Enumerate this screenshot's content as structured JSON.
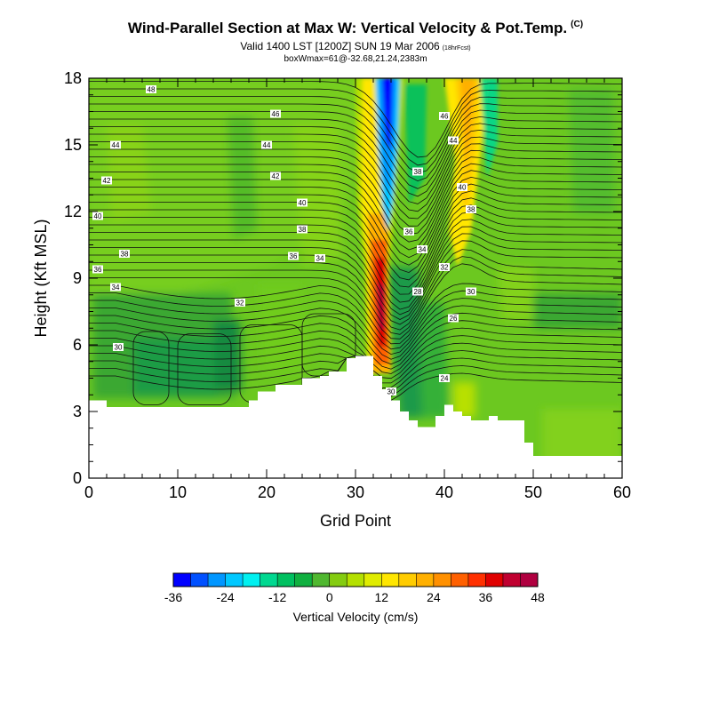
{
  "chart_data": {
    "type": "heatmap",
    "title": "Wind-Parallel Section at Max W: Vertical Velocity & Pot.Temp.",
    "copyright_mark": "(C)",
    "subtitle": "Valid 1400 LST [1200Z] SUN 19 Mar 2006",
    "subtitle_tag": "(18hrFcst)",
    "subtitle2": "boxWmax=61@-32.68,21.24,2383m",
    "xlabel": "Grid Point",
    "ylabel": "Height (Kft MSL)",
    "xlim": [
      0,
      60
    ],
    "ylim": [
      0,
      18
    ],
    "xticks": [
      "0",
      "10",
      "20",
      "30",
      "40",
      "50",
      "60"
    ],
    "yticks": [
      "0",
      "3",
      "6",
      "9",
      "12",
      "15",
      "18"
    ],
    "colorbar": {
      "label": "Vertical Velocity (cm/s)",
      "min": -36,
      "max": 48,
      "step": 4,
      "tick_labels": [
        "-36",
        "-24",
        "-12",
        "0",
        "12",
        "24",
        "36",
        "48"
      ],
      "colors": [
        "#0000ff",
        "#0050ff",
        "#0096ff",
        "#00c8ff",
        "#00f0f0",
        "#00d890",
        "#00c060",
        "#10b040",
        "#50b830",
        "#84cc10",
        "#b4e000",
        "#e0ec00",
        "#ffe600",
        "#ffcc00",
        "#ffb000",
        "#ff9000",
        "#ff6000",
        "#ff3000",
        "#e00000",
        "#c00030",
        "#b00040"
      ]
    },
    "terrain_kft": [
      3.5,
      3.5,
      3.2,
      3.2,
      3.2,
      3.2,
      3.2,
      3.2,
      3.2,
      3.2,
      3.2,
      3.2,
      3.2,
      3.2,
      3.2,
      3.2,
      3.2,
      3.2,
      3.5,
      3.9,
      3.9,
      4.2,
      4.2,
      4.2,
      4.5,
      4.5,
      4.6,
      4.8,
      4.8,
      5.4,
      5.5,
      5.5,
      4.6,
      4.0,
      3.5,
      3.0,
      2.6,
      2.3,
      2.3,
      2.8,
      3.3,
      3.0,
      2.8,
      2.6,
      2.6,
      2.8,
      2.6,
      2.6,
      2.6,
      1.6,
      1.0,
      1.0,
      1.0,
      1.0,
      1.0,
      1.0,
      1.0,
      1.0,
      1.0,
      1.0,
      1.0
    ],
    "theta_contours": [
      {
        "label": "30",
        "gx": 3.3,
        "gk": 5.9
      },
      {
        "label": "32",
        "gx": 17,
        "gk": 7.9
      },
      {
        "label": "34",
        "gx": 3.0,
        "gk": 8.6
      },
      {
        "label": "34",
        "gx": 26,
        "gk": 9.9
      },
      {
        "label": "36",
        "gx": 1.0,
        "gk": 9.4
      },
      {
        "label": "36",
        "gx": 23,
        "gk": 10.0
      },
      {
        "label": "38",
        "gx": 4.0,
        "gk": 10.1
      },
      {
        "label": "38",
        "gx": 24,
        "gk": 11.2
      },
      {
        "label": "40",
        "gx": 1.0,
        "gk": 11.8
      },
      {
        "label": "40",
        "gx": 24,
        "gk": 12.4
      },
      {
        "label": "42",
        "gx": 2.0,
        "gk": 13.4
      },
      {
        "label": "42",
        "gx": 21,
        "gk": 13.6
      },
      {
        "label": "44",
        "gx": 3.0,
        "gk": 15.0
      },
      {
        "label": "44",
        "gx": 20,
        "gk": 15.0
      },
      {
        "label": "46",
        "gx": 21,
        "gk": 16.4
      },
      {
        "label": "48",
        "gx": 7.0,
        "gk": 17.5
      },
      {
        "label": "30",
        "gx": 34,
        "gk": 3.9
      },
      {
        "label": "28",
        "gx": 37,
        "gk": 8.4
      },
      {
        "label": "32",
        "gx": 40,
        "gk": 9.5
      },
      {
        "label": "34",
        "gx": 37.5,
        "gk": 10.3
      },
      {
        "label": "36",
        "gx": 36,
        "gk": 11.1
      },
      {
        "label": "38",
        "gx": 37,
        "gk": 13.8
      },
      {
        "label": "26",
        "gx": 41,
        "gk": 7.2
      },
      {
        "label": "24",
        "gx": 40,
        "gk": 4.5
      },
      {
        "label": "30",
        "gx": 43,
        "gk": 8.4
      },
      {
        "label": "38",
        "gx": 43,
        "gk": 12.1
      },
      {
        "label": "40",
        "gx": 42,
        "gk": 13.1
      },
      {
        "label": "44",
        "gx": 41,
        "gk": 15.2
      },
      {
        "label": "46",
        "gx": 40,
        "gk": 16.3
      }
    ]
  }
}
